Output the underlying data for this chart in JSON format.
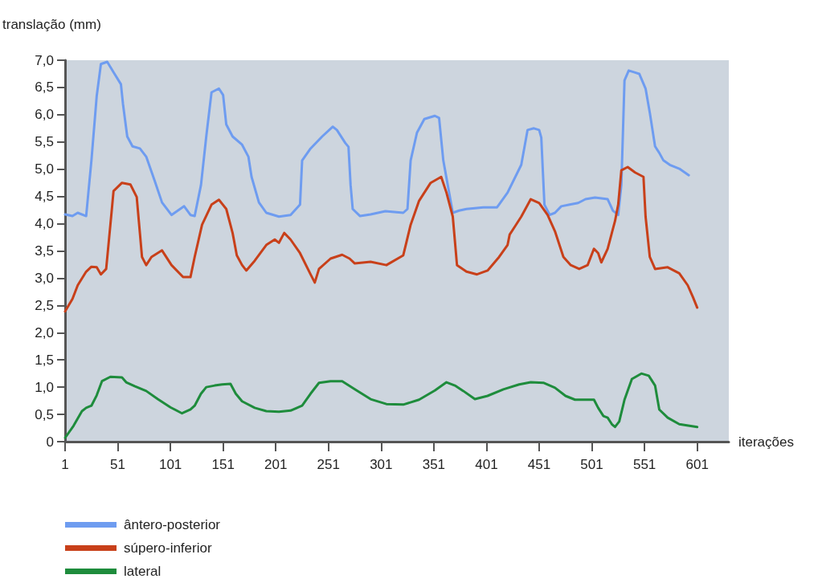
{
  "chart_data": {
    "type": "line",
    "ylabel": "translação (mm)",
    "xlabel": "iterações",
    "xlim": [
      1,
      631
    ],
    "xticks": [
      1,
      51,
      101,
      151,
      201,
      251,
      301,
      351,
      401,
      451,
      501,
      551,
      601
    ],
    "ylim": [
      0,
      7
    ],
    "yticks": [
      0,
      {
        "value": 0.5,
        "label": "0,5"
      },
      {
        "value": 1,
        "label": "1,0"
      },
      {
        "value": 1.5,
        "label": "1,5"
      },
      {
        "value": 2,
        "label": "2,0"
      },
      {
        "value": 2.5,
        "label": "2,5"
      },
      {
        "value": 3,
        "label": "3,0"
      },
      {
        "value": 3.5,
        "label": "3,5"
      },
      {
        "value": 4,
        "label": "4,0"
      },
      {
        "value": 4.5,
        "label": "4,5"
      },
      {
        "value": 5,
        "label": "5,0"
      },
      {
        "value": 5.5,
        "label": "5,5"
      },
      {
        "value": 6,
        "label": "6,0"
      },
      {
        "value": 6.5,
        "label": "6,5"
      },
      {
        "value": 7,
        "label": "7,0"
      }
    ],
    "grid": false,
    "legend": "bottom left",
    "marker": "none",
    "line_style": "solid",
    "series": [
      {
        "name": "ântero-posterior",
        "color": "#6e9cf0",
        "x": [
          1,
          8,
          13,
          21,
          26,
          31,
          35,
          41,
          47,
          54,
          56,
          60,
          65,
          72,
          78,
          86,
          93,
          102,
          108,
          114,
          120,
          124,
          130,
          135,
          140,
          147,
          151,
          154,
          160,
          169,
          175,
          178,
          185,
          192,
          204,
          215,
          224,
          226,
          234,
          245,
          255,
          259,
          267,
          270,
          272,
          274,
          281,
          291,
          305,
          322,
          326,
          329,
          335,
          342,
          352,
          356,
          360,
          369,
          375,
          382,
          398,
          411,
          421,
          434,
          440,
          446,
          451,
          453,
          456,
          461,
          466,
          472,
          480,
          488,
          495,
          504,
          516,
          521,
          526,
          529,
          532,
          536,
          541,
          546,
          552,
          556,
          561,
          565,
          569,
          575,
          584,
          593
        ],
        "values": [
          4.17,
          4.14,
          4.2,
          4.14,
          5.16,
          6.34,
          6.93,
          6.97,
          6.78,
          6.56,
          6.19,
          5.6,
          5.42,
          5.38,
          5.23,
          4.79,
          4.39,
          4.16,
          4.24,
          4.32,
          4.16,
          4.14,
          4.71,
          5.6,
          6.41,
          6.48,
          6.36,
          5.82,
          5.6,
          5.45,
          5.23,
          4.86,
          4.39,
          4.2,
          4.13,
          4.16,
          4.35,
          5.16,
          5.38,
          5.6,
          5.78,
          5.72,
          5.48,
          5.41,
          4.71,
          4.27,
          4.14,
          4.17,
          4.23,
          4.2,
          4.27,
          5.16,
          5.67,
          5.92,
          5.98,
          5.94,
          5.16,
          4.2,
          4.24,
          4.27,
          4.3,
          4.3,
          4.57,
          5.08,
          5.72,
          5.75,
          5.72,
          5.58,
          4.35,
          4.16,
          4.2,
          4.32,
          4.35,
          4.38,
          4.45,
          4.48,
          4.45,
          4.24,
          4.16,
          4.71,
          6.63,
          6.81,
          6.78,
          6.75,
          6.48,
          6.04,
          5.42,
          5.3,
          5.16,
          5.08,
          5.01,
          4.89
        ]
      },
      {
        "name": "súpero-inferior",
        "color": "#c8401a",
        "x": [
          1,
          8,
          13,
          21,
          26,
          31,
          35,
          40,
          44,
          47,
          55,
          63,
          69,
          72,
          74,
          78,
          83,
          93,
          102,
          113,
          120,
          124,
          131,
          140,
          147,
          154,
          160,
          164,
          169,
          173,
          181,
          192,
          200,
          204,
          209,
          215,
          224,
          234,
          238,
          242,
          253,
          264,
          271,
          276,
          291,
          306,
          322,
          329,
          337,
          348,
          358,
          363,
          369,
          373,
          382,
          392,
          402,
          413,
          421,
          423,
          428,
          434,
          443,
          451,
          459,
          466,
          474,
          481,
          489,
          497,
          503,
          507,
          510,
          516,
          523,
          526,
          529,
          535,
          542,
          550,
          552,
          556,
          561,
          573,
          584,
          592,
          597,
          601
        ],
        "values": [
          2.39,
          2.62,
          2.87,
          3.12,
          3.21,
          3.2,
          3.07,
          3.17,
          3.98,
          4.6,
          4.75,
          4.72,
          4.49,
          3.83,
          3.39,
          3.24,
          3.39,
          3.51,
          3.24,
          3.02,
          3.02,
          3.39,
          3.98,
          4.35,
          4.44,
          4.27,
          3.83,
          3.42,
          3.24,
          3.14,
          3.32,
          3.61,
          3.71,
          3.65,
          3.83,
          3.71,
          3.46,
          3.07,
          2.92,
          3.17,
          3.36,
          3.43,
          3.36,
          3.27,
          3.3,
          3.24,
          3.42,
          3.98,
          4.42,
          4.75,
          4.86,
          4.57,
          4.13,
          3.24,
          3.12,
          3.07,
          3.14,
          3.39,
          3.61,
          3.8,
          3.95,
          4.13,
          4.45,
          4.38,
          4.16,
          3.86,
          3.39,
          3.24,
          3.17,
          3.24,
          3.54,
          3.46,
          3.29,
          3.54,
          4.05,
          4.35,
          4.98,
          5.04,
          4.94,
          4.86,
          4.13,
          3.39,
          3.17,
          3.2,
          3.09,
          2.87,
          2.65,
          2.46
        ]
      },
      {
        "name": "lateral",
        "color": "#1e8c3c",
        "x": [
          1,
          9,
          17,
          21,
          26,
          31,
          36,
          44,
          55,
          59,
          67,
          78,
          89,
          101,
          112,
          120,
          124,
          130,
          135,
          143,
          150,
          158,
          163,
          169,
          181,
          192,
          204,
          215,
          226,
          234,
          242,
          253,
          261,
          264,
          276,
          291,
          306,
          322,
          337,
          352,
          363,
          371,
          379,
          390,
          402,
          417,
          432,
          443,
          455,
          466,
          476,
          485,
          497,
          503,
          507,
          512,
          516,
          520,
          523,
          527,
          532,
          539,
          548,
          555,
          561,
          565,
          573,
          584,
          601
        ],
        "values": [
          0.07,
          0.29,
          0.56,
          0.62,
          0.66,
          0.85,
          1.11,
          1.19,
          1.18,
          1.09,
          1.02,
          0.93,
          0.78,
          0.63,
          0.52,
          0.59,
          0.66,
          0.88,
          1,
          1.03,
          1.05,
          1.06,
          0.88,
          0.74,
          0.62,
          0.56,
          0.55,
          0.57,
          0.66,
          0.88,
          1.08,
          1.11,
          1.11,
          1.11,
          0.96,
          0.78,
          0.69,
          0.68,
          0.77,
          0.94,
          1.09,
          1.03,
          0.93,
          0.78,
          0.84,
          0.96,
          1.05,
          1.09,
          1.08,
          0.99,
          0.84,
          0.77,
          0.77,
          0.77,
          0.62,
          0.47,
          0.44,
          0.32,
          0.27,
          0.37,
          0.77,
          1.15,
          1.25,
          1.21,
          1.03,
          0.59,
          0.44,
          0.32,
          0.27
        ]
      }
    ]
  }
}
